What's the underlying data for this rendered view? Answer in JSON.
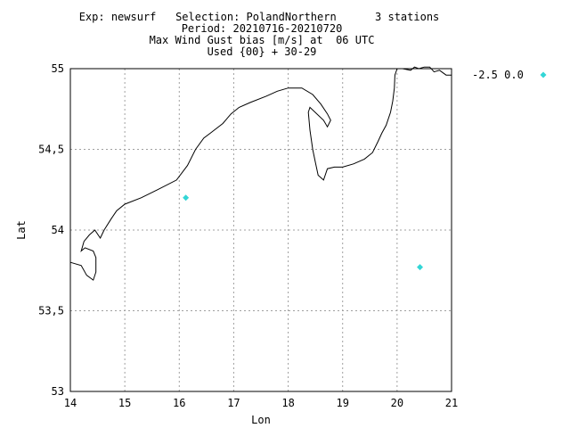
{
  "header": {
    "line1": "Exp: newsurf   Selection: PolandNorthern      3 stations",
    "line2": "Period: 20210716-20210720",
    "line3": "Max Wind Gust bias [m/s] at  06 UTC",
    "line4": "Used {00} + 30-29"
  },
  "chart_data": {
    "type": "scatter",
    "xlabel": "Lon",
    "ylabel": "Lat",
    "xlim": [
      14,
      21
    ],
    "ylim": [
      53,
      55
    ],
    "x_ticks": [
      "14",
      "15",
      "16",
      "17",
      "18",
      "19",
      "20",
      "21"
    ],
    "y_ticks": [
      "53",
      "53,5",
      "54",
      "54,5",
      "55"
    ],
    "grid": true,
    "legend": {
      "placement": "top-right",
      "entries": [
        {
          "label": "-2.5 0.0",
          "color": "#33d6d6"
        }
      ]
    },
    "points": [
      {
        "lon": 16.12,
        "lat": 54.2
      },
      {
        "lon": 20.42,
        "lat": 53.77
      }
    ],
    "coastline": [
      [
        [
          14.0,
          53.8
        ],
        [
          14.2,
          53.78
        ],
        [
          14.3,
          53.72
        ],
        [
          14.42,
          53.69
        ],
        [
          14.47,
          53.74
        ],
        [
          14.47,
          53.83
        ],
        [
          14.42,
          53.87
        ],
        [
          14.27,
          53.89
        ],
        [
          14.2,
          53.87
        ],
        [
          14.25,
          53.93
        ],
        [
          14.35,
          53.97
        ],
        [
          14.45,
          54.0
        ],
        [
          14.55,
          53.95
        ],
        [
          14.62,
          54.0
        ],
        [
          14.75,
          54.07
        ],
        [
          14.85,
          54.12
        ],
        [
          15.0,
          54.16
        ],
        [
          15.3,
          54.2
        ],
        [
          15.6,
          54.25
        ],
        [
          15.95,
          54.31
        ],
        [
          16.15,
          54.4
        ],
        [
          16.3,
          54.5
        ],
        [
          16.45,
          54.57
        ],
        [
          16.57,
          54.6
        ],
        [
          16.8,
          54.66
        ],
        [
          16.95,
          54.72
        ],
        [
          17.1,
          54.76
        ],
        [
          17.3,
          54.79
        ],
        [
          17.6,
          54.83
        ],
        [
          17.8,
          54.86
        ],
        [
          18.0,
          54.88
        ],
        [
          18.25,
          54.88
        ],
        [
          18.45,
          54.84
        ],
        [
          18.6,
          54.78
        ],
        [
          18.72,
          54.72
        ],
        [
          18.78,
          54.68
        ],
        [
          18.72,
          54.64
        ],
        [
          18.65,
          54.68
        ],
        [
          18.4,
          54.76
        ],
        [
          18.37,
          54.73
        ],
        [
          18.4,
          54.62
        ],
        [
          18.45,
          54.5
        ],
        [
          18.5,
          54.42
        ],
        [
          18.55,
          54.34
        ],
        [
          18.65,
          54.31
        ],
        [
          18.72,
          54.38
        ],
        [
          18.85,
          54.39
        ],
        [
          19.0,
          54.39
        ],
        [
          19.2,
          54.41
        ],
        [
          19.4,
          54.44
        ],
        [
          19.55,
          54.48
        ],
        [
          19.65,
          54.55
        ],
        [
          19.72,
          54.6
        ],
        [
          19.8,
          54.65
        ],
        [
          19.88,
          54.73
        ],
        [
          19.92,
          54.8
        ],
        [
          19.95,
          54.88
        ],
        [
          19.96,
          54.96
        ],
        [
          20.0,
          55.0
        ]
      ],
      [
        [
          20.1,
          55.0
        ],
        [
          20.25,
          54.99
        ],
        [
          20.32,
          55.01
        ],
        [
          20.4,
          55.0
        ],
        [
          20.5,
          55.01
        ],
        [
          20.6,
          55.01
        ],
        [
          20.68,
          54.98
        ],
        [
          20.78,
          54.99
        ],
        [
          20.9,
          54.96
        ],
        [
          21.0,
          54.96
        ]
      ]
    ]
  }
}
